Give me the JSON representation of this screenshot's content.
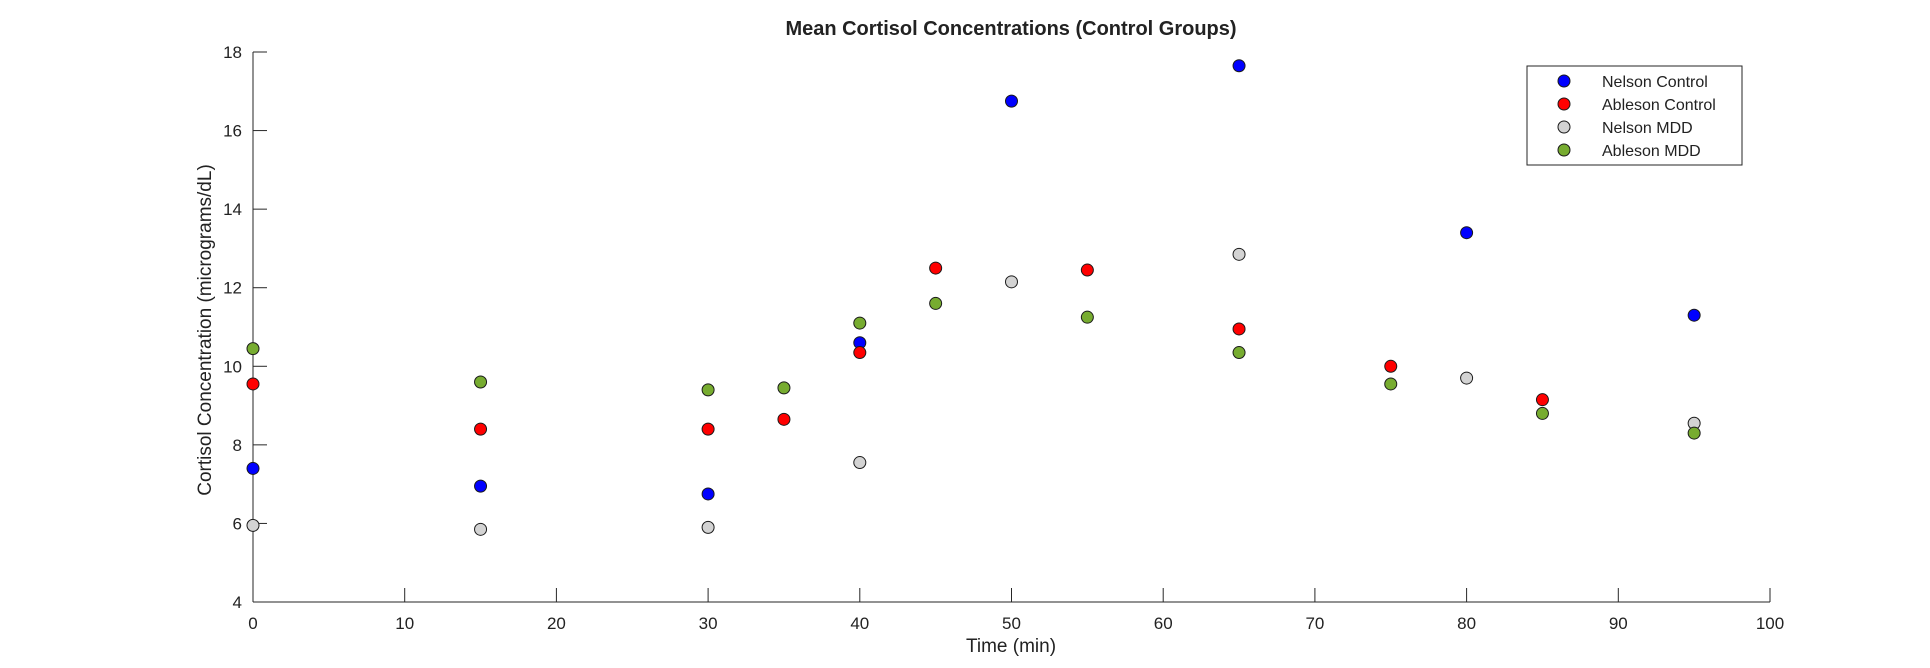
{
  "chart_data": {
    "type": "scatter",
    "title": "Mean Cortisol Concentrations (Control Groups)",
    "xlabel": "Time (min)",
    "ylabel": "Cortisol Concentration (micrograms/dL)",
    "xlim": [
      0,
      100
    ],
    "ylim": [
      4,
      18
    ],
    "xticks": [
      0,
      10,
      20,
      30,
      40,
      50,
      60,
      70,
      80,
      90,
      100
    ],
    "yticks": [
      4,
      6,
      8,
      10,
      12,
      14,
      16,
      18
    ],
    "grid": false,
    "legend_position": "top-right",
    "series": [
      {
        "name": "Nelson Control",
        "color": "#0000ff",
        "points": [
          [
            0,
            7.4
          ],
          [
            15,
            6.95
          ],
          [
            30,
            6.75
          ],
          [
            40,
            10.6
          ],
          [
            50,
            16.75
          ],
          [
            65,
            17.65
          ],
          [
            80,
            13.4
          ],
          [
            95,
            11.3
          ]
        ]
      },
      {
        "name": "Ableson Control",
        "color": "#ff0000",
        "points": [
          [
            0,
            9.55
          ],
          [
            15,
            8.4
          ],
          [
            30,
            8.4
          ],
          [
            35,
            8.65
          ],
          [
            40,
            10.35
          ],
          [
            45,
            12.5
          ],
          [
            55,
            12.45
          ],
          [
            65,
            10.95
          ],
          [
            75,
            10.0
          ],
          [
            85,
            9.15
          ]
        ]
      },
      {
        "name": "Nelson MDD",
        "color": "#d3d3d3",
        "points": [
          [
            0,
            5.95
          ],
          [
            15,
            5.85
          ],
          [
            30,
            5.9
          ],
          [
            40,
            7.55
          ],
          [
            50,
            12.15
          ],
          [
            65,
            12.85
          ],
          [
            80,
            9.7
          ],
          [
            95,
            8.55
          ]
        ]
      },
      {
        "name": "Ableson MDD",
        "color": "#77ac30",
        "points": [
          [
            0,
            10.45
          ],
          [
            15,
            9.6
          ],
          [
            30,
            9.4
          ],
          [
            35,
            9.45
          ],
          [
            40,
            11.1
          ],
          [
            45,
            11.6
          ],
          [
            55,
            11.25
          ],
          [
            65,
            10.35
          ],
          [
            75,
            9.55
          ],
          [
            85,
            8.8
          ],
          [
            95,
            8.3
          ]
        ]
      }
    ]
  }
}
